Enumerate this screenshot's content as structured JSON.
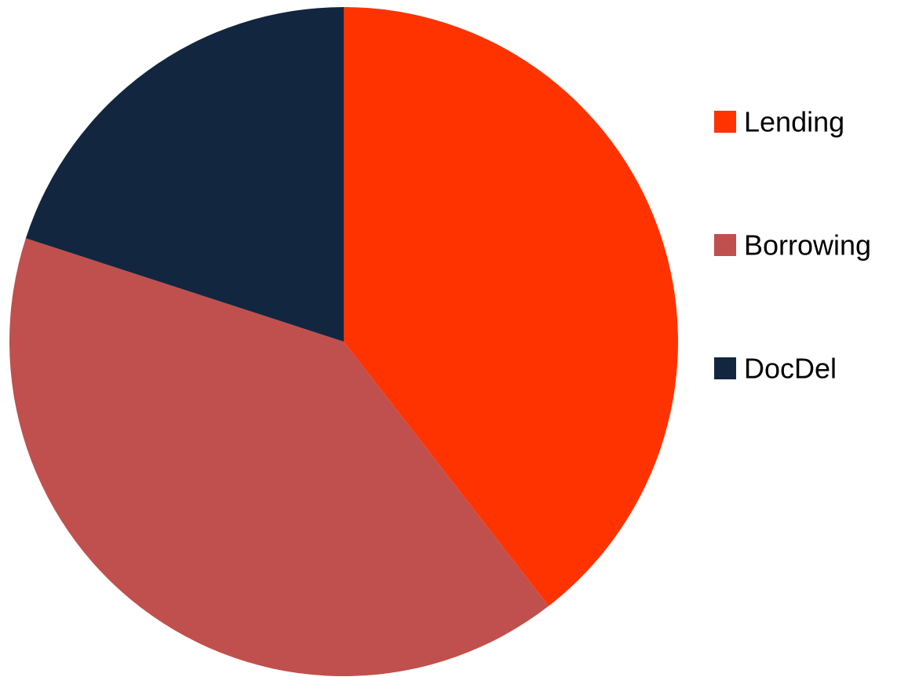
{
  "chart_data": {
    "type": "pie",
    "title": "",
    "start_angle_deg": 0,
    "direction": "clockwise",
    "legend_position": "right",
    "slices": [
      {
        "label": "Lending",
        "value": 39.5,
        "color": "#ff3300"
      },
      {
        "label": "Borrowing",
        "value": 40.5,
        "color": "#c0504d"
      },
      {
        "label": "DocDel",
        "value": 20.0,
        "color": "#132640"
      }
    ]
  }
}
